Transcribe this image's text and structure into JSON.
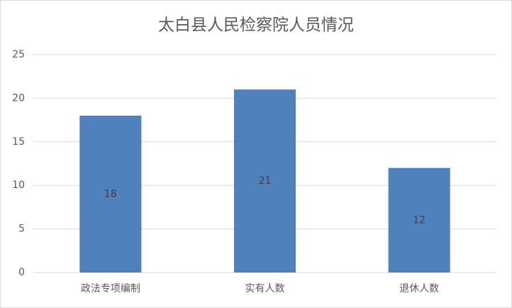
{
  "chart_data": {
    "type": "bar",
    "title": "太白县人民检察院人员情况",
    "categories": [
      "政法专项编制",
      "实有人数",
      "退休人数"
    ],
    "values": [
      18,
      21,
      12
    ],
    "color": "#4f81bd",
    "ylim": [
      0,
      25
    ],
    "yticks": [
      0,
      5,
      10,
      15,
      20,
      25
    ],
    "grid": true
  }
}
